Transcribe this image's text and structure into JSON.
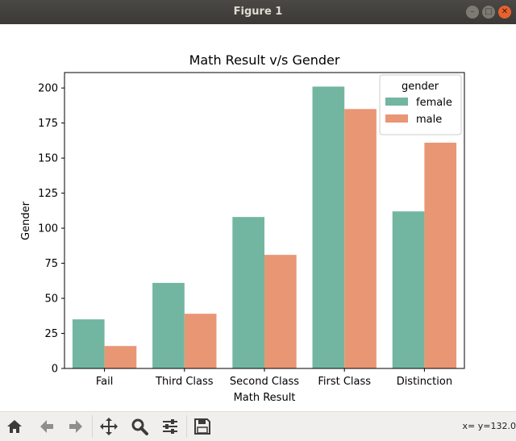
{
  "window": {
    "title": "Figure 1"
  },
  "toolbar": {
    "coords": "x= y=132.0",
    "icons": [
      "home-icon",
      "back-icon",
      "forward-icon",
      "pan-icon",
      "zoom-icon",
      "configure-icon",
      "save-icon"
    ]
  },
  "colors": {
    "female": "#72b6a1",
    "male": "#e99675"
  },
  "chart_data": {
    "type": "bar",
    "title": "Math Result v/s Gender",
    "xlabel": "Math Result",
    "ylabel": "Gender",
    "categories": [
      "Fail",
      "Third Class",
      "Second Class",
      "First Class",
      "Distinction"
    ],
    "series": [
      {
        "name": "female",
        "values": [
          35,
          61,
          108,
          201,
          112
        ]
      },
      {
        "name": "male",
        "values": [
          16,
          39,
          81,
          185,
          161
        ]
      }
    ],
    "ylim": [
      0,
      211
    ],
    "yticks": [
      0,
      25,
      50,
      75,
      100,
      125,
      150,
      175,
      200
    ],
    "legend": {
      "title": "gender",
      "position": "upper right"
    },
    "grid": false
  }
}
